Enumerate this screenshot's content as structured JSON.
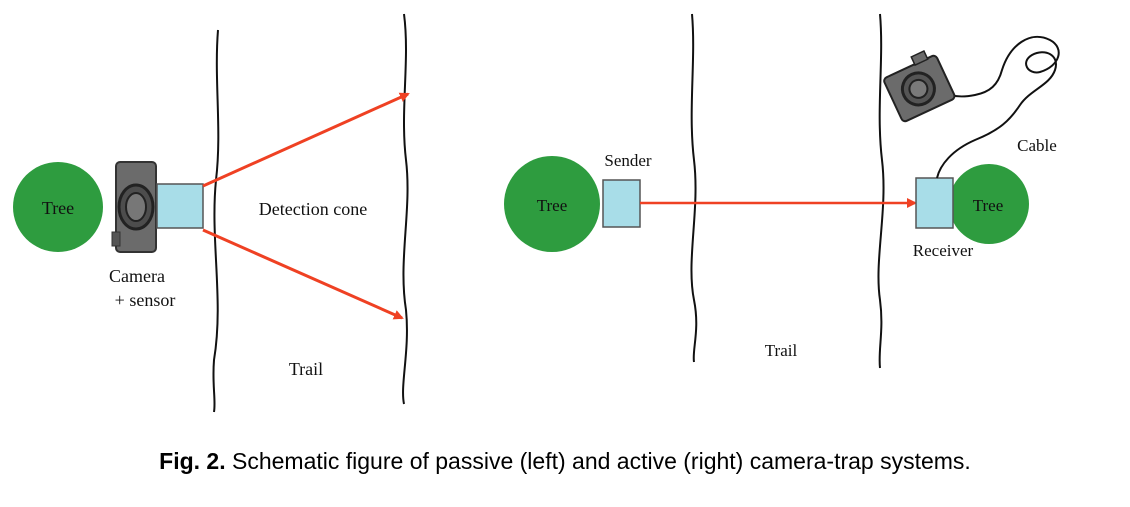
{
  "passive": {
    "tree_label": "Tree",
    "camera_label_line1": "Camera",
    "camera_label_line2": "+ sensor",
    "cone_label": "Detection cone",
    "trail_label": "Trail"
  },
  "active": {
    "sender_tree_label": "Tree",
    "sender_label": "Sender",
    "receiver_tree_label": "Tree",
    "receiver_label": "Receiver",
    "cable_label": "Cable",
    "trail_label": "Trail"
  },
  "caption": {
    "prefix": "Fig. 2.",
    "text": " Schematic figure of passive (left) and active (right) camera-trap systems."
  },
  "colors": {
    "tree": "#2e9c3f",
    "sensor": "#a8dde8",
    "beam": "#ef4123",
    "camera": "#6b6b6b"
  }
}
